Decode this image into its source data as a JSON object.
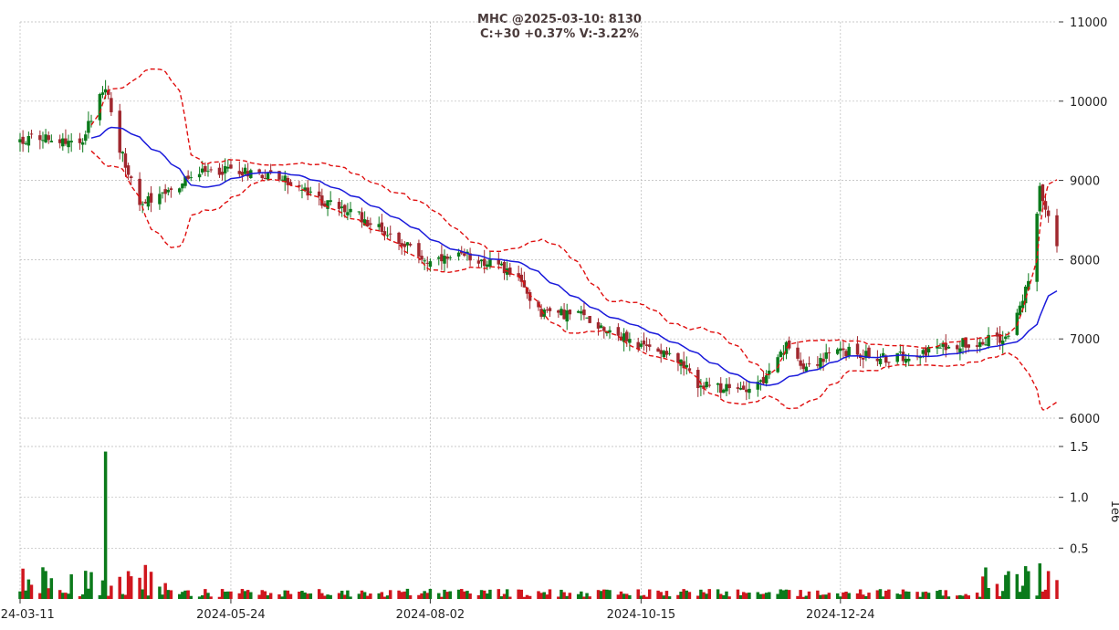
{
  "title_line1": "MHC @2025-03-10: 8130",
  "title_line2": "C:+30 +0.37% V:-3.22%",
  "colors": {
    "up": "#0b7a1b",
    "down": "#d0161e",
    "down_candle": "#a0282f",
    "ma": "#1a1adb",
    "band": "#e01010",
    "grid": "#b8b8b8"
  },
  "chart_data": {
    "type": "candlestick",
    "price_axis": {
      "ticks": [
        6000,
        7000,
        8000,
        9000,
        10000,
        11000
      ],
      "labels": [
        "6000",
        "7000",
        "8000",
        "9000",
        "10000",
        "11000"
      ],
      "ylim": [
        5850,
        11050
      ]
    },
    "volume_axis": {
      "ticks": [
        0.5,
        1.0,
        1.5
      ],
      "labels": [
        "0.5",
        "1.0",
        "1.5"
      ],
      "label": "1e6",
      "ylim": [
        0,
        1.58
      ]
    },
    "x_axis": {
      "start_date": "2024-03-11",
      "end_date": "2025-03-10",
      "tick_labels": [
        "2024-03-11",
        "2024-05-24",
        "2024-08-02",
        "2024-10-15",
        "2024-12-24"
      ]
    },
    "anchors": [
      {
        "date": "2024-03-11",
        "close": 9500
      },
      {
        "date": "2024-03-20",
        "close": 9550
      },
      {
        "date": "2024-04-01",
        "close": 9450
      },
      {
        "date": "2024-04-10",
        "close": 10200
      },
      {
        "date": "2024-04-15",
        "close": 9400
      },
      {
        "date": "2024-04-22",
        "close": 8700
      },
      {
        "date": "2024-05-01",
        "close": 8800
      },
      {
        "date": "2024-05-10",
        "close": 9050
      },
      {
        "date": "2024-05-24",
        "close": 9150
      },
      {
        "date": "2024-06-10",
        "close": 9050
      },
      {
        "date": "2024-06-24",
        "close": 8750
      },
      {
        "date": "2024-07-08",
        "close": 8550
      },
      {
        "date": "2024-07-22",
        "close": 8250
      },
      {
        "date": "2024-08-02",
        "close": 7950
      },
      {
        "date": "2024-08-16",
        "close": 8050
      },
      {
        "date": "2024-08-30",
        "close": 7850
      },
      {
        "date": "2024-09-10",
        "close": 7350
      },
      {
        "date": "2024-09-24",
        "close": 7300
      },
      {
        "date": "2024-10-15",
        "close": 6900
      },
      {
        "date": "2024-10-25",
        "close": 6850
      },
      {
        "date": "2024-11-05",
        "close": 6400
      },
      {
        "date": "2024-11-18",
        "close": 6350
      },
      {
        "date": "2024-11-28",
        "close": 6500
      },
      {
        "date": "2024-12-05",
        "close": 6900
      },
      {
        "date": "2024-12-12",
        "close": 6650
      },
      {
        "date": "2024-12-24",
        "close": 6850
      },
      {
        "date": "2025-01-10",
        "close": 6750
      },
      {
        "date": "2025-02-05",
        "close": 6950
      },
      {
        "date": "2025-02-20",
        "close": 7000
      },
      {
        "date": "2025-02-28",
        "close": 7700
      },
      {
        "date": "2025-03-04",
        "close": 8900
      },
      {
        "date": "2025-03-10",
        "close": 8130
      }
    ],
    "volume_events": [
      {
        "date": "2024-04-10",
        "volume": 1.45,
        "direction": "up"
      },
      {
        "date": "2025-03-04",
        "volume": 0.35,
        "direction": "down"
      }
    ],
    "overlays": [
      {
        "type": "moving_average",
        "color": "blue"
      },
      {
        "type": "bollinger_upper",
        "color": "red",
        "style": "dashed"
      },
      {
        "type": "bollinger_lower",
        "color": "red",
        "style": "dashed"
      }
    ]
  }
}
